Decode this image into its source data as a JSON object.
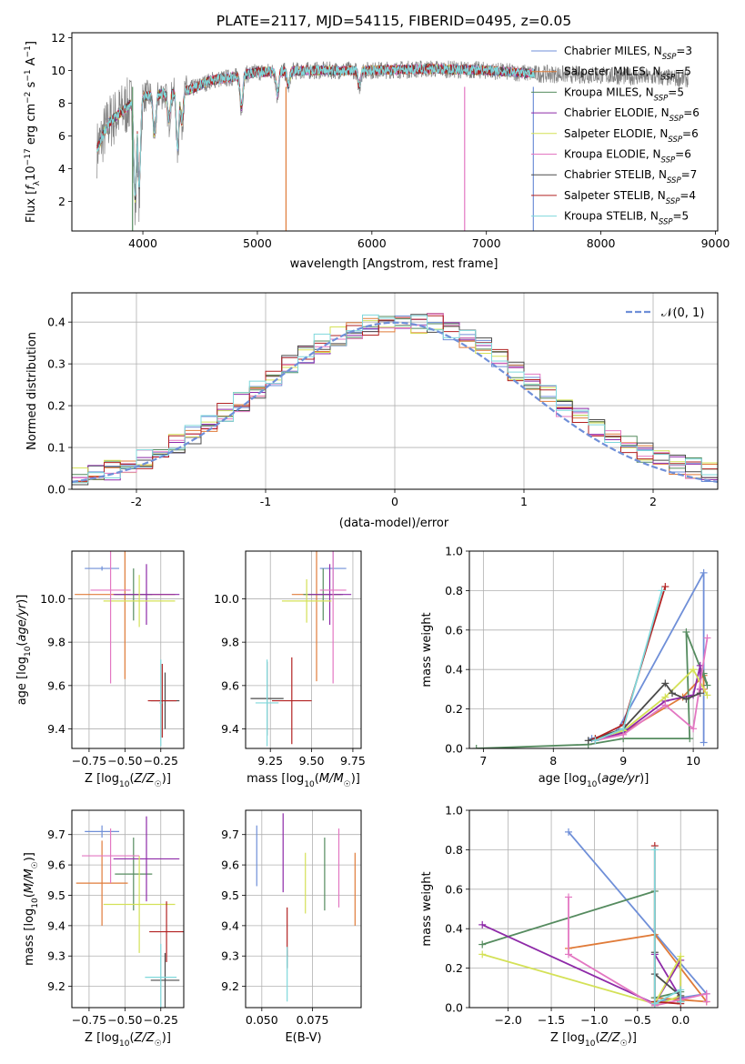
{
  "colors": [
    "#6f8fd8",
    "#e07b39",
    "#558b5f",
    "#8e2aa8",
    "#d4e157",
    "#e377c2",
    "#4a4a4a",
    "#b22222",
    "#7fd8db"
  ],
  "chart_data": [
    {
      "type": "line",
      "title": "PLATE=2117, MJD=54115, FIBERID=0495, z=0.05",
      "xlabel": "wavelength [Angstrom, rest frame]",
      "ylabel": "Flux [f_λ10^-17 erg cm^-2 s^-1 A^-1]",
      "xlim": [
        3380,
        9020
      ],
      "ylim": [
        0.2,
        12.3
      ],
      "xticks": [
        4000,
        5000,
        6000,
        7000,
        8000,
        9000
      ],
      "yticks": [
        2,
        4,
        6,
        8,
        10,
        12
      ],
      "x_range_models": [
        3600,
        7420
      ],
      "x_range_data": [
        3600,
        8760
      ],
      "legend_position": "upper right",
      "series": [
        {
          "name": "Chabrier MILES, N_SSP=3",
          "label_main": "Chabrier MILES, N",
          "label_sub": "SSP",
          "label_end": "=3"
        },
        {
          "name": "Salpeter MILES, N_SSP=5",
          "label_main": "Salpeter MILES, N",
          "label_sub": "SSP",
          "label_end": "=5"
        },
        {
          "name": "Kroupa MILES, N_SSP=5",
          "label_main": "Kroupa MILES, N",
          "label_sub": "SSP",
          "label_end": "=5"
        },
        {
          "name": "Chabrier ELODIE, N_SSP=6",
          "label_main": "Chabrier ELODIE, N",
          "label_sub": "SSP",
          "label_end": "=6"
        },
        {
          "name": "Salpeter ELODIE, N_SSP=6",
          "label_main": "Salpeter ELODIE, N",
          "label_sub": "SSP",
          "label_end": "=6"
        },
        {
          "name": "Kroupa ELODIE, N_SSP=6",
          "label_main": "Kroupa ELODIE, N",
          "label_sub": "SSP",
          "label_end": "=6"
        },
        {
          "name": "Chabrier STELIB, N_SSP=7",
          "label_main": "Chabrier STELIB, N",
          "label_sub": "SSP",
          "label_end": "=7"
        },
        {
          "name": "Salpeter STELIB, N_SSP=4",
          "label_main": "Salpeter STELIB, N",
          "label_sub": "SSP",
          "label_end": "=4"
        },
        {
          "name": "Kroupa STELIB, N_SSP=5",
          "label_main": "Kroupa STELIB, N",
          "label_sub": "SSP",
          "label_end": "=5"
        }
      ],
      "spectrum_profile": [
        [
          3600,
          5.2
        ],
        [
          3700,
          6.8
        ],
        [
          3800,
          7.4
        ],
        [
          3900,
          8.0
        ],
        [
          4000,
          8.4
        ],
        [
          4200,
          8.6
        ],
        [
          4400,
          8.8
        ],
        [
          4600,
          9.4
        ],
        [
          4800,
          9.6
        ],
        [
          5000,
          9.9
        ],
        [
          5500,
          10.0
        ],
        [
          6000,
          10.0
        ],
        [
          6500,
          10.1
        ],
        [
          7000,
          10.0
        ],
        [
          7420,
          9.8
        ],
        [
          8000,
          9.7
        ],
        [
          8760,
          9.5
        ]
      ],
      "absorption_lines": [
        [
          3933,
          1.5
        ],
        [
          3968,
          2.4
        ],
        [
          4102,
          5.8
        ],
        [
          4227,
          6.8
        ],
        [
          4304,
          5.0
        ],
        [
          4340,
          6.6
        ],
        [
          4861,
          7.6
        ],
        [
          5175,
          8.4
        ],
        [
          5270,
          9.0
        ],
        [
          5890,
          9.0
        ]
      ]
    },
    {
      "type": "histogram",
      "xlabel": "(data-model)/error",
      "ylabel": "Normed distribution",
      "xlim": [
        -2.5,
        2.5
      ],
      "ylim": [
        0,
        0.47
      ],
      "xticks": [
        -2,
        -1,
        0,
        1,
        2
      ],
      "yticks": [
        0.0,
        0.1,
        0.2,
        0.3,
        0.4
      ],
      "bin_width": 0.125,
      "reference_curve": "𝒩(0, 1)",
      "legend_position": "upper right",
      "grid": true
    },
    {
      "type": "scatter",
      "xlabel": "Z [log10(Z/Z☉)]",
      "ylabel": "age  [log10(age/yr)]",
      "xlim": [
        -0.87,
        -0.09
      ],
      "ylim": [
        9.31,
        10.22
      ],
      "xticks": [
        -0.75,
        -0.5,
        -0.25
      ],
      "xtick_labels": [
        "−0.75",
        "−0.50",
        "−0.25"
      ],
      "yticks": [
        9.4,
        9.6,
        9.8,
        10.0
      ],
      "points": [
        {
          "x": -0.66,
          "y": 10.14,
          "xerr": 0.12,
          "yerr": 0.01
        },
        {
          "x": -0.5,
          "y": 10.02,
          "xerr": 0.35,
          "yerr": 0.39
        },
        {
          "x": -0.44,
          "y": 10.02,
          "xerr": 0.13,
          "yerr": 0.12
        },
        {
          "x": -0.35,
          "y": 10.02,
          "xerr": 0.23,
          "yerr": 0.14
        },
        {
          "x": -0.4,
          "y": 9.99,
          "xerr": 0.25,
          "yerr": 0.12
        },
        {
          "x": -0.6,
          "y": 10.04,
          "xerr": 0.14,
          "yerr": 0.43
        },
        {
          "x": -0.22,
          "y": 9.53,
          "xerr": 0.1,
          "yerr": 0.13
        },
        {
          "x": -0.24,
          "y": 9.53,
          "xerr": 0.1,
          "yerr": 0.17
        },
        {
          "x": -0.25,
          "y": 9.52,
          "xerr": 0.01,
          "yerr": 0.2
        }
      ]
    },
    {
      "type": "scatter",
      "xlabel": "mass [log10(M/M☉)]",
      "ylabel": "",
      "xlim": [
        9.1,
        9.8
      ],
      "ylim": [
        9.31,
        10.22
      ],
      "xticks": [
        9.25,
        9.5,
        9.75
      ],
      "xtick_labels": [
        "9.25",
        "9.50",
        "9.75"
      ],
      "yticks": [
        9.4,
        9.6,
        9.8,
        10.0
      ],
      "points": [
        {
          "x": 9.63,
          "y": 10.14,
          "xerr": 0.08,
          "yerr": 0.11
        },
        {
          "x": 9.53,
          "y": 10.02,
          "xerr": 0.15,
          "yerr": 0.4
        },
        {
          "x": 9.57,
          "y": 10.02,
          "xerr": 0.12,
          "yerr": 0.12
        },
        {
          "x": 9.61,
          "y": 10.02,
          "xerr": 0.13,
          "yerr": 0.14
        },
        {
          "x": 9.47,
          "y": 9.99,
          "xerr": 0.15,
          "yerr": 0.1
        },
        {
          "x": 9.63,
          "y": 10.04,
          "xerr": 0.08,
          "yerr": 0.43
        },
        {
          "x": 9.23,
          "y": 9.54,
          "xerr": 0.1,
          "yerr": 0.17
        },
        {
          "x": 9.38,
          "y": 9.53,
          "xerr": 0.12,
          "yerr": 0.2
        },
        {
          "x": 9.23,
          "y": 9.52,
          "xerr": 0.07,
          "yerr": 0.2
        }
      ]
    },
    {
      "type": "line",
      "xlabel": "age  [log10(age/yr)]",
      "ylabel": "mass weight",
      "xlim": [
        6.8,
        10.35
      ],
      "ylim": [
        0,
        1.0
      ],
      "xticks": [
        7,
        8,
        9,
        10
      ],
      "yticks": [
        0.0,
        0.2,
        0.4,
        0.6,
        0.8,
        1.0
      ],
      "yticks_labels": [
        "0.0",
        "0.2",
        "0.4",
        "0.6",
        "0.8",
        "1.0"
      ],
      "grid": true,
      "series": [
        {
          "x": [
            8.55,
            8.9,
            10.15,
            10.15
          ],
          "y": [
            0.05,
            0.08,
            0.89,
            0.03
          ]
        },
        {
          "x": [
            8.6,
            9.0,
            9.85,
            10.15,
            10.15
          ],
          "y": [
            0.04,
            0.08,
            0.26,
            0.37,
            0.3
          ]
        },
        {
          "x": [
            6.9,
            8.5,
            9.0,
            9.95,
            9.9,
            10.2,
            10.15
          ],
          "y": [
            0.0,
            0.02,
            0.05,
            0.05,
            0.59,
            0.32,
            0.38
          ]
        },
        {
          "x": [
            8.6,
            9.0,
            9.6,
            10.0,
            10.1,
            10.1
          ],
          "y": [
            0.04,
            0.08,
            0.24,
            0.27,
            0.42,
            0.3
          ]
        },
        {
          "x": [
            8.6,
            9.0,
            9.6,
            10.0,
            10.2
          ],
          "y": [
            0.05,
            0.09,
            0.26,
            0.4,
            0.27
          ]
        },
        {
          "x": [
            8.6,
            9.0,
            9.6,
            10.0,
            10.2
          ],
          "y": [
            0.04,
            0.07,
            0.22,
            0.1,
            0.56
          ]
        },
        {
          "x": [
            8.5,
            9.0,
            9.6,
            9.7,
            9.9,
            10.1
          ],
          "y": [
            0.04,
            0.1,
            0.33,
            0.28,
            0.25,
            0.28
          ]
        },
        {
          "x": [
            8.6,
            9.0,
            9.6
          ],
          "y": [
            0.05,
            0.12,
            0.82
          ]
        },
        {
          "x": [
            8.6,
            9.0,
            9.55
          ],
          "y": [
            0.04,
            0.1,
            0.8
          ]
        }
      ]
    },
    {
      "type": "scatter",
      "xlabel": "Z [log10(Z/Z☉)]",
      "ylabel": "mass [log10(M/M☉)]",
      "xlim": [
        -0.87,
        -0.09
      ],
      "ylim": [
        9.13,
        9.78
      ],
      "xticks": [
        -0.75,
        -0.5,
        -0.25
      ],
      "xtick_labels": [
        "−0.75",
        "−0.50",
        "−0.25"
      ],
      "yticks": [
        9.2,
        9.3,
        9.4,
        9.5,
        9.6,
        9.7
      ],
      "points": [
        {
          "x": -0.66,
          "y": 9.71,
          "xerr": 0.12,
          "yerr": 0.02
        },
        {
          "x": -0.66,
          "y": 9.54,
          "xerr": 0.18,
          "yerr": 0.14
        },
        {
          "x": -0.44,
          "y": 9.57,
          "xerr": 0.13,
          "yerr": 0.12
        },
        {
          "x": -0.35,
          "y": 9.62,
          "xerr": 0.23,
          "yerr": 0.14
        },
        {
          "x": -0.4,
          "y": 9.47,
          "xerr": 0.25,
          "yerr": 0.16
        },
        {
          "x": -0.6,
          "y": 9.63,
          "xerr": 0.2,
          "yerr": 0.09
        },
        {
          "x": -0.22,
          "y": 9.22,
          "xerr": 0.1,
          "yerr": 0.09
        },
        {
          "x": -0.21,
          "y": 9.38,
          "xerr": 0.12,
          "yerr": 0.1
        },
        {
          "x": -0.25,
          "y": 9.23,
          "xerr": 0.11,
          "yerr": 0.11
        }
      ]
    },
    {
      "type": "scatter",
      "xlabel": "E(B-V)",
      "ylabel": "",
      "xlim": [
        0.042,
        0.099
      ],
      "ylim": [
        9.13,
        9.78
      ],
      "xticks": [
        0.05,
        0.075
      ],
      "xtick_labels": [
        "0.050",
        "0.075"
      ],
      "yticks": [
        9.2,
        9.3,
        9.4,
        9.5,
        9.6,
        9.7
      ],
      "points": [
        {
          "x": 0.0475,
          "y": 9.63,
          "xerr": 0,
          "yerr": 0.1
        },
        {
          "x": 0.096,
          "y": 9.52,
          "xerr": 0,
          "yerr": 0.12
        },
        {
          "x": 0.081,
          "y": 9.57,
          "xerr": 0,
          "yerr": 0.12
        },
        {
          "x": 0.0605,
          "y": 9.64,
          "xerr": 0,
          "yerr": 0.13
        },
        {
          "x": 0.0715,
          "y": 9.54,
          "xerr": 0,
          "yerr": 0.1
        },
        {
          "x": 0.088,
          "y": 9.59,
          "xerr": 0,
          "yerr": 0.13
        },
        {
          "x": 0.0625,
          "y": 9.29,
          "xerr": 0,
          "yerr": 0.03
        },
        {
          "x": 0.0625,
          "y": 9.38,
          "xerr": 0,
          "yerr": 0.08
        },
        {
          "x": 0.0625,
          "y": 9.24,
          "xerr": 0,
          "yerr": 0.09
        }
      ]
    },
    {
      "type": "line",
      "xlabel": "Z [log10(Z/Z☉)]",
      "ylabel": "mass weight",
      "xlim": [
        -2.45,
        0.43
      ],
      "ylim": [
        0,
        1.0
      ],
      "xticks": [
        -2.0,
        -1.5,
        -1.0,
        -0.5,
        0.0
      ],
      "xtick_labels": [
        "−2.0",
        "−1.5",
        "−1.0",
        "−0.5",
        "0.0"
      ],
      "yticks": [
        0.0,
        0.2,
        0.4,
        0.6,
        0.8,
        1.0
      ],
      "grid": true,
      "series": [
        {
          "x": [
            -1.3,
            0.3,
            -0.3,
            -0.3
          ],
          "y": [
            0.89,
            0.07,
            0.03,
            0.02
          ]
        },
        {
          "x": [
            -1.3,
            -0.3,
            0.3,
            -0.3
          ],
          "y": [
            0.3,
            0.37,
            0.03,
            0.05
          ]
        },
        {
          "x": [
            -2.3,
            -0.3,
            -0.3,
            0.0,
            0.0
          ],
          "y": [
            0.32,
            0.59,
            0.05,
            0.08,
            0.03
          ]
        },
        {
          "x": [
            -2.3,
            -0.3,
            0.0,
            0.0,
            -0.3
          ],
          "y": [
            0.42,
            0.02,
            0.24,
            0.05,
            0.27
          ]
        },
        {
          "x": [
            -2.3,
            -0.3,
            0.0,
            0.0,
            -0.3
          ],
          "y": [
            0.27,
            0.02,
            0.26,
            0.06,
            0.01
          ]
        },
        {
          "x": [
            -1.3,
            -1.3,
            -0.3,
            0.3,
            0.3
          ],
          "y": [
            0.56,
            0.27,
            0.01,
            0.07,
            0.03
          ]
        },
        {
          "x": [
            -0.3,
            -0.3,
            0.0,
            0.0
          ],
          "y": [
            0.28,
            0.17,
            0.06,
            0.03
          ]
        },
        {
          "x": [
            -0.3,
            -0.3,
            0.0
          ],
          "y": [
            0.82,
            0.03,
            0.02
          ]
        },
        {
          "x": [
            -0.3,
            -0.3,
            0.0,
            0.0
          ],
          "y": [
            0.8,
            0.02,
            0.09,
            0.03
          ]
        }
      ]
    }
  ]
}
